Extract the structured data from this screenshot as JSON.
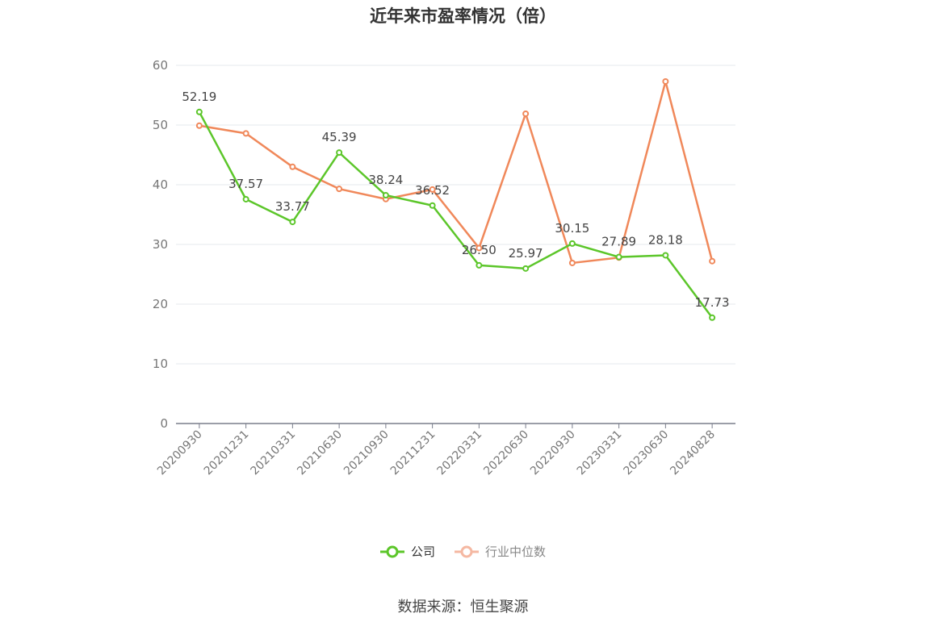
{
  "title": "近年来市盈率情况（倍）",
  "source": "数据来源：恒生聚源",
  "colors": {
    "company": "#5cc62a",
    "industry": "#f0885a",
    "industry_legend": "#f5b8a2",
    "grid": "#e6e8ee",
    "axis": "#7a7e8c",
    "tick_text": "#777777",
    "label_text": "#444444"
  },
  "chart_data": {
    "type": "line",
    "title": "近年来市盈率情况（倍）",
    "xlabel": "",
    "ylabel": "",
    "ylim": [
      0,
      60
    ],
    "yticks": [
      0,
      10,
      20,
      30,
      40,
      50,
      60
    ],
    "grid": true,
    "legend": "bottom-center",
    "categories": [
      "20200930",
      "20201231",
      "20210331",
      "20210630",
      "20210930",
      "20211231",
      "20220331",
      "20220630",
      "20220930",
      "20230331",
      "20230630",
      "20240828"
    ],
    "series": [
      {
        "name": "公司",
        "values": [
          52.19,
          37.57,
          33.77,
          45.39,
          38.24,
          36.52,
          26.5,
          25.97,
          30.15,
          27.89,
          28.18,
          17.73
        ],
        "labels": [
          "52.19",
          "37.57",
          "33.77",
          "45.39",
          "38.24",
          "36.52",
          "26.50",
          "25.97",
          "30.15",
          "27.89",
          "28.18",
          "17.73"
        ]
      },
      {
        "name": "行业中位数",
        "values": [
          49.9,
          48.6,
          43.0,
          39.3,
          37.6,
          39.2,
          29.4,
          51.9,
          26.9,
          27.8,
          57.3,
          27.2
        ]
      }
    ]
  }
}
